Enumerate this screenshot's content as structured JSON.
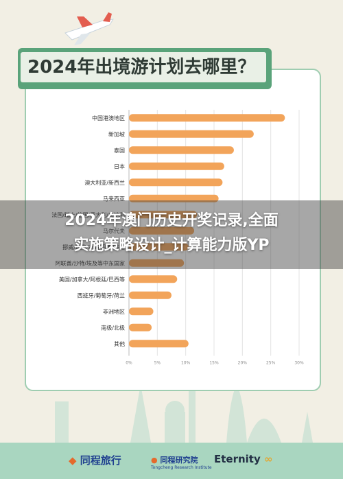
{
  "title": "2024年出境游计划去哪里？",
  "overlay_text": [
    "2024年澳门历史开奖记录,全面",
    "实施策略设计_计算能力版YP"
  ],
  "logos": {
    "tongcheng_travel": "同程旅行",
    "tongcheng_research": "同程研究院",
    "tongcheng_research_en": "Tongcheng Research Institute",
    "eternity": "Eternity"
  },
  "colors": {
    "bar": "#f2a45a",
    "title_banner": "#5aa37a",
    "card_border": "#9fcdb1",
    "footer": "#a9d6c0"
  },
  "chart_data": {
    "type": "bar",
    "orientation": "horizontal",
    "categories": [
      "中国港澳地区",
      "新加坡",
      "泰国",
      "日本",
      "澳大利亚/新西兰",
      "马来西亚",
      "法国/瑞士/德国/意大利/奥地利",
      "马尔代夫",
      "挪威/瑞典/冰岛/丹麦/芬兰",
      "阿联酋/沙特/埃及等中东国家",
      "美国/加拿大/阿根廷/巴西等",
      "西班牙/葡萄牙/荷兰",
      "非洲地区",
      "南极/北极",
      "其他"
    ],
    "values": [
      27.5,
      22.0,
      18.5,
      16.8,
      16.5,
      15.8,
      12.0,
      11.5,
      10.5,
      9.7,
      8.5,
      7.5,
      4.3,
      4.0,
      10.5
    ],
    "xlim": [
      0,
      30
    ],
    "xticks": [
      "0%",
      "5%",
      "10%",
      "15%",
      "20%",
      "25%",
      "30%"
    ],
    "grid": true
  }
}
